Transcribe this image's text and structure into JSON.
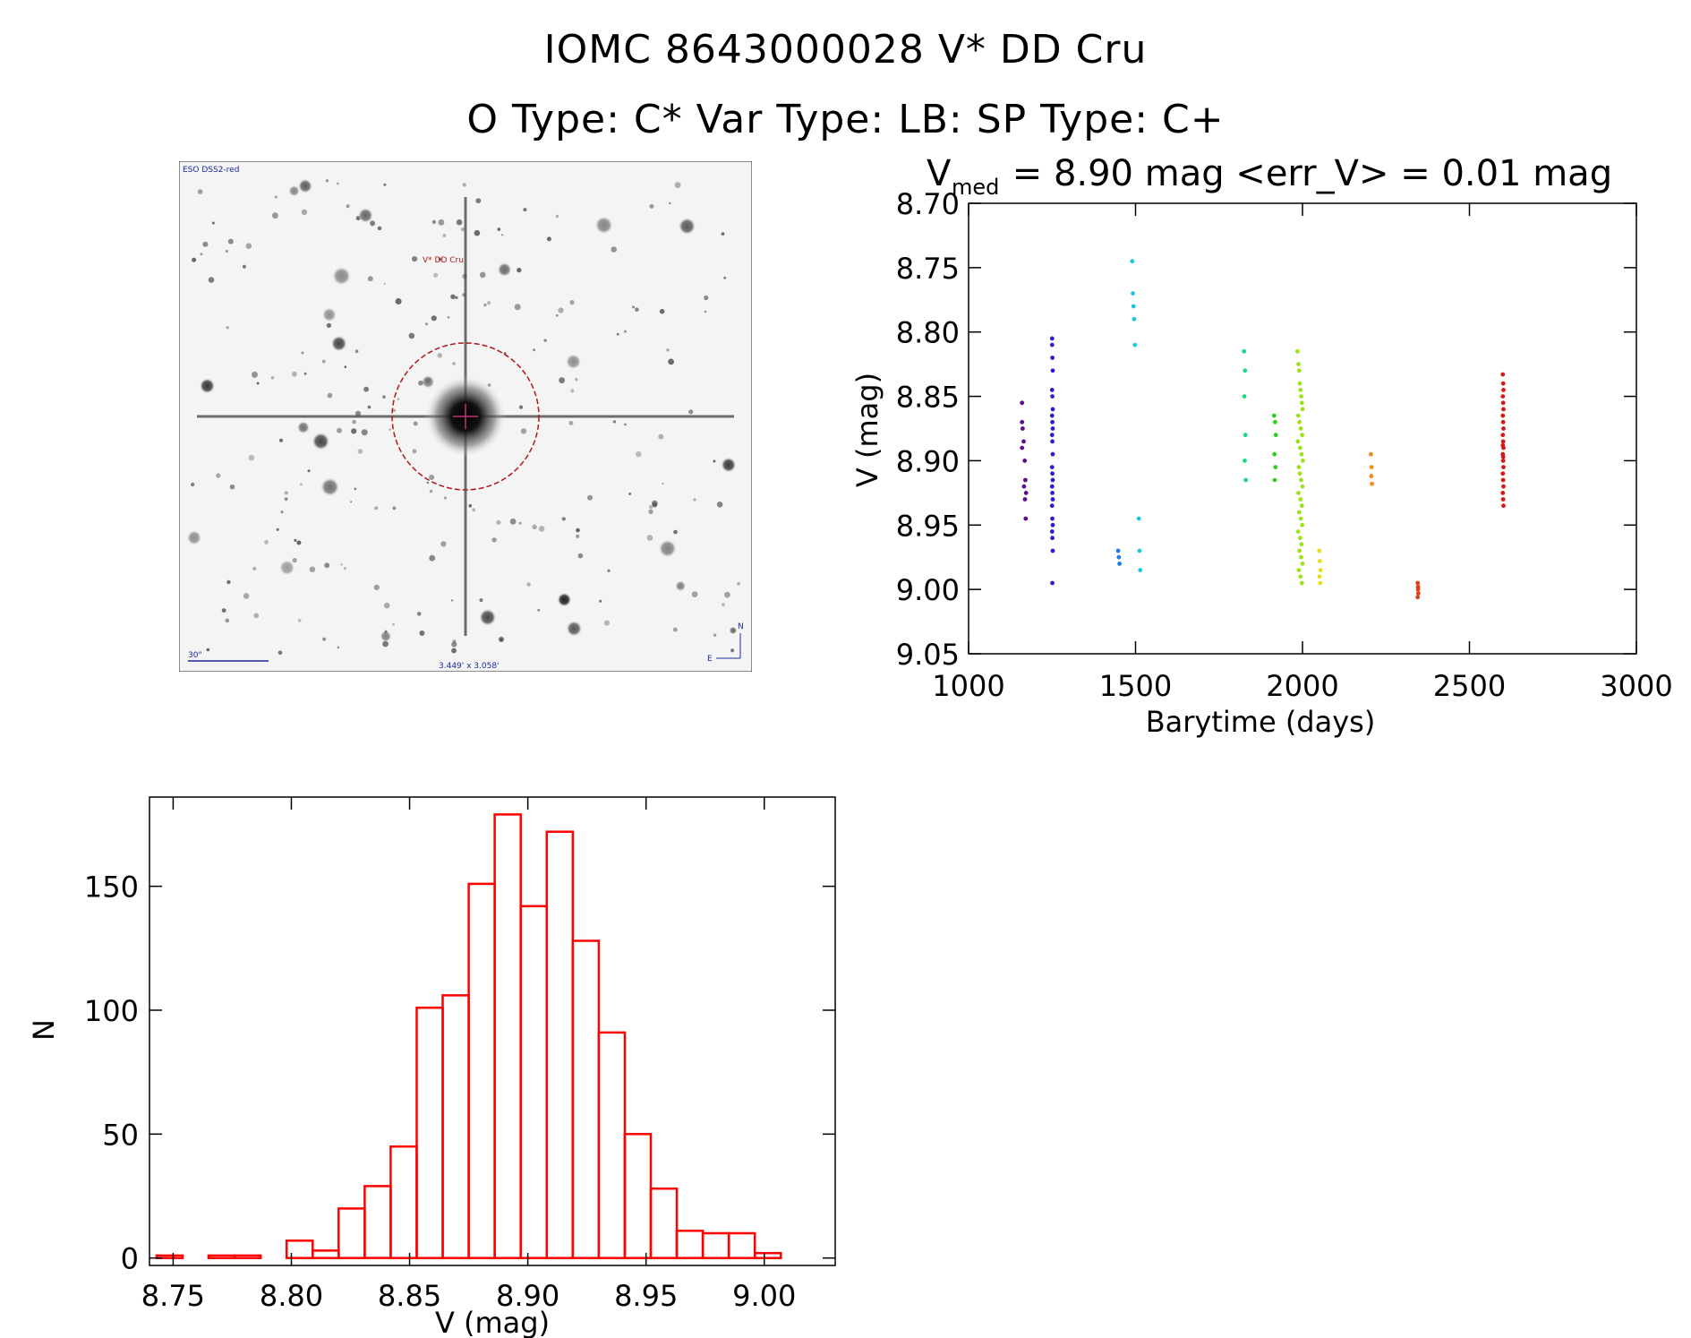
{
  "title": {
    "line1": "IOMC 8643000028   V* DD Cru",
    "line2": "O Type: C*  Var Type: LB:  SP Type: C+"
  },
  "image_panel": {
    "survey_label": "ESO DSS2-red",
    "target_label": "V* DD Cru",
    "scale_label": "30\"",
    "fov_label": "3.449' x 3.058'",
    "north_label": "N",
    "east_label": "E"
  },
  "chart_data": [
    {
      "type": "scatter",
      "title_main": "V",
      "title_sub": "med",
      "title_rest": " = 8.90 mag <err_V> = 0.01 mag",
      "xlabel": "Barytime (days)",
      "ylabel": "V (mag)",
      "xlim": [
        1000,
        3000
      ],
      "ylim": [
        9.05,
        8.7
      ],
      "xticks": [
        "1000",
        "1500",
        "2000",
        "2500",
        "3000"
      ],
      "yticks": [
        "8.70",
        "8.75",
        "8.80",
        "8.85",
        "8.90",
        "8.95",
        "9.00",
        "9.05"
      ],
      "grid": false,
      "series": [
        {
          "color": "#5b0f8c",
          "x": [
            1160,
            1160,
            1162,
            1165,
            1168,
            1170,
            1172,
            1160,
            1166,
            1169,
            1171
          ],
          "y": [
            8.855,
            8.87,
            8.875,
            8.885,
            8.9,
            8.915,
            8.925,
            8.89,
            8.92,
            8.93,
            8.945
          ]
        },
        {
          "color": "#2a1ecf",
          "x": [
            1250,
            1250,
            1251,
            1252,
            1250,
            1251,
            1252,
            1250,
            1251,
            1252,
            1250,
            1251,
            1252,
            1250,
            1251,
            1252,
            1250,
            1251,
            1252,
            1250,
            1251,
            1252,
            1250,
            1251,
            1252,
            1251
          ],
          "y": [
            8.805,
            8.81,
            8.82,
            8.83,
            8.845,
            8.85,
            8.86,
            8.865,
            8.87,
            8.875,
            8.88,
            8.885,
            8.895,
            8.905,
            8.91,
            8.915,
            8.92,
            8.925,
            8.93,
            8.935,
            8.945,
            8.95,
            8.955,
            8.96,
            8.97,
            8.995
          ]
        },
        {
          "color": "#1a7cdc",
          "x": [
            1448,
            1450,
            1452
          ],
          "y": [
            8.97,
            8.975,
            8.98
          ]
        },
        {
          "color": "#19c8df",
          "x": [
            1490,
            1492,
            1494,
            1496,
            1498,
            1510,
            1512,
            1514
          ],
          "y": [
            8.745,
            8.77,
            8.78,
            8.79,
            8.81,
            8.945,
            8.97,
            8.985
          ]
        },
        {
          "color": "#1ad883",
          "x": [
            1825,
            1828,
            1826,
            1829,
            1827,
            1830
          ],
          "y": [
            8.815,
            8.83,
            8.85,
            8.88,
            8.9,
            8.915
          ]
        },
        {
          "color": "#29d11b",
          "x": [
            1915,
            1918,
            1920,
            1916,
            1919,
            1917
          ],
          "y": [
            8.865,
            8.87,
            8.88,
            8.895,
            8.905,
            8.915
          ]
        },
        {
          "color": "#9be41b",
          "x": [
            1985,
            1988,
            1990,
            1992,
            1994,
            1996,
            1998,
            2000,
            1987,
            1991,
            1995,
            1999,
            1986,
            1993,
            1997,
            2001,
            1989,
            1992,
            1996,
            2000,
            1988,
            1994,
            1998,
            1990,
            1995,
            1999,
            1987,
            1993,
            1997,
            1991,
            1996,
            2000,
            1989,
            1994,
            1998
          ],
          "y": [
            8.815,
            8.825,
            8.83,
            8.84,
            8.845,
            8.85,
            8.855,
            8.86,
            8.865,
            8.87,
            8.875,
            8.88,
            8.885,
            8.89,
            8.895,
            8.9,
            8.905,
            8.91,
            8.915,
            8.92,
            8.925,
            8.93,
            8.935,
            8.94,
            8.945,
            8.95,
            8.955,
            8.96,
            8.965,
            8.97,
            8.975,
            8.98,
            8.985,
            8.99,
            8.995
          ]
        },
        {
          "color": "#e6e01a",
          "x": [
            2050,
            2052,
            2054,
            2051,
            2053
          ],
          "y": [
            8.97,
            8.978,
            8.985,
            8.99,
            8.995
          ]
        },
        {
          "color": "#f08a1a",
          "x": [
            2205,
            2207,
            2206,
            2208
          ],
          "y": [
            8.895,
            8.905,
            8.912,
            8.918
          ]
        },
        {
          "color": "#e04015",
          "x": [
            2345,
            2346,
            2347,
            2345,
            2346
          ],
          "y": [
            8.995,
            9.0,
            9.003,
            9.006,
            8.998
          ]
        },
        {
          "color": "#d81616",
          "x": [
            2600,
            2601,
            2602,
            2600,
            2601,
            2602,
            2600,
            2601,
            2602,
            2600,
            2601,
            2602,
            2600,
            2601,
            2602,
            2600,
            2601,
            2602,
            2600,
            2601,
            2602,
            2600,
            2601
          ],
          "y": [
            8.833,
            8.84,
            8.845,
            8.85,
            8.855,
            8.86,
            8.865,
            8.87,
            8.875,
            8.88,
            8.885,
            8.89,
            8.895,
            8.9,
            8.905,
            8.91,
            8.915,
            8.92,
            8.925,
            8.93,
            8.935,
            8.888,
            8.897
          ]
        }
      ]
    },
    {
      "type": "bar",
      "xlabel": "V (mag)",
      "ylabel": "N",
      "xlim": [
        8.74,
        9.03
      ],
      "ylim": [
        -3,
        186
      ],
      "xticks": [
        "8.75",
        "8.80",
        "8.85",
        "8.90",
        "8.95",
        "9.00"
      ],
      "yticks": [
        "0",
        "50",
        "100",
        "150"
      ],
      "bin_width": 0.011,
      "bin_starts": [
        8.743,
        8.754,
        8.765,
        8.776,
        8.787,
        8.798,
        8.809,
        8.82,
        8.831,
        8.842,
        8.853,
        8.864,
        8.875,
        8.886,
        8.897,
        8.908,
        8.919,
        8.93,
        8.941,
        8.952,
        8.963,
        8.974,
        8.985,
        8.996,
        9.007
      ],
      "values": [
        1,
        0,
        1,
        1,
        0,
        7,
        3,
        20,
        29,
        45,
        101,
        106,
        151,
        179,
        142,
        172,
        128,
        91,
        50,
        28,
        11,
        10,
        10,
        2,
        0
      ],
      "color": "#ff0000",
      "grid": false
    }
  ]
}
